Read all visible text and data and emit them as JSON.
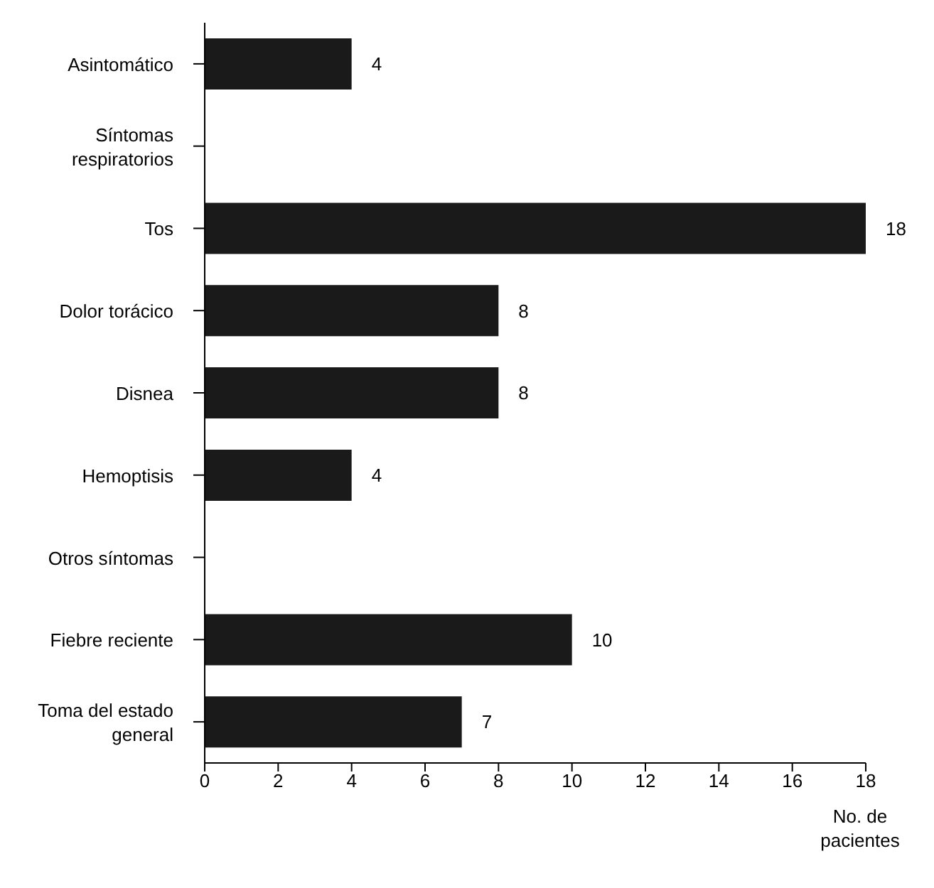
{
  "chart_data": {
    "type": "bar",
    "orientation": "horizontal",
    "xlabel": "No. de pacientes",
    "categories": [
      "Asintomático",
      "Síntomas respiratorios",
      "Tos",
      "Dolor torácico",
      "Disnea",
      "Hemoptisis",
      "Otros síntomas",
      "Fiebre reciente",
      "Toma del estado general"
    ],
    "values": [
      4,
      null,
      18,
      8,
      8,
      4,
      null,
      10,
      7
    ],
    "color": "#1a1a1a",
    "xlim": [
      0,
      18
    ],
    "xticks": [
      0,
      2,
      4,
      6,
      8,
      10,
      12,
      14,
      16,
      18
    ],
    "data_labels": true,
    "grid": false,
    "legend": false
  }
}
